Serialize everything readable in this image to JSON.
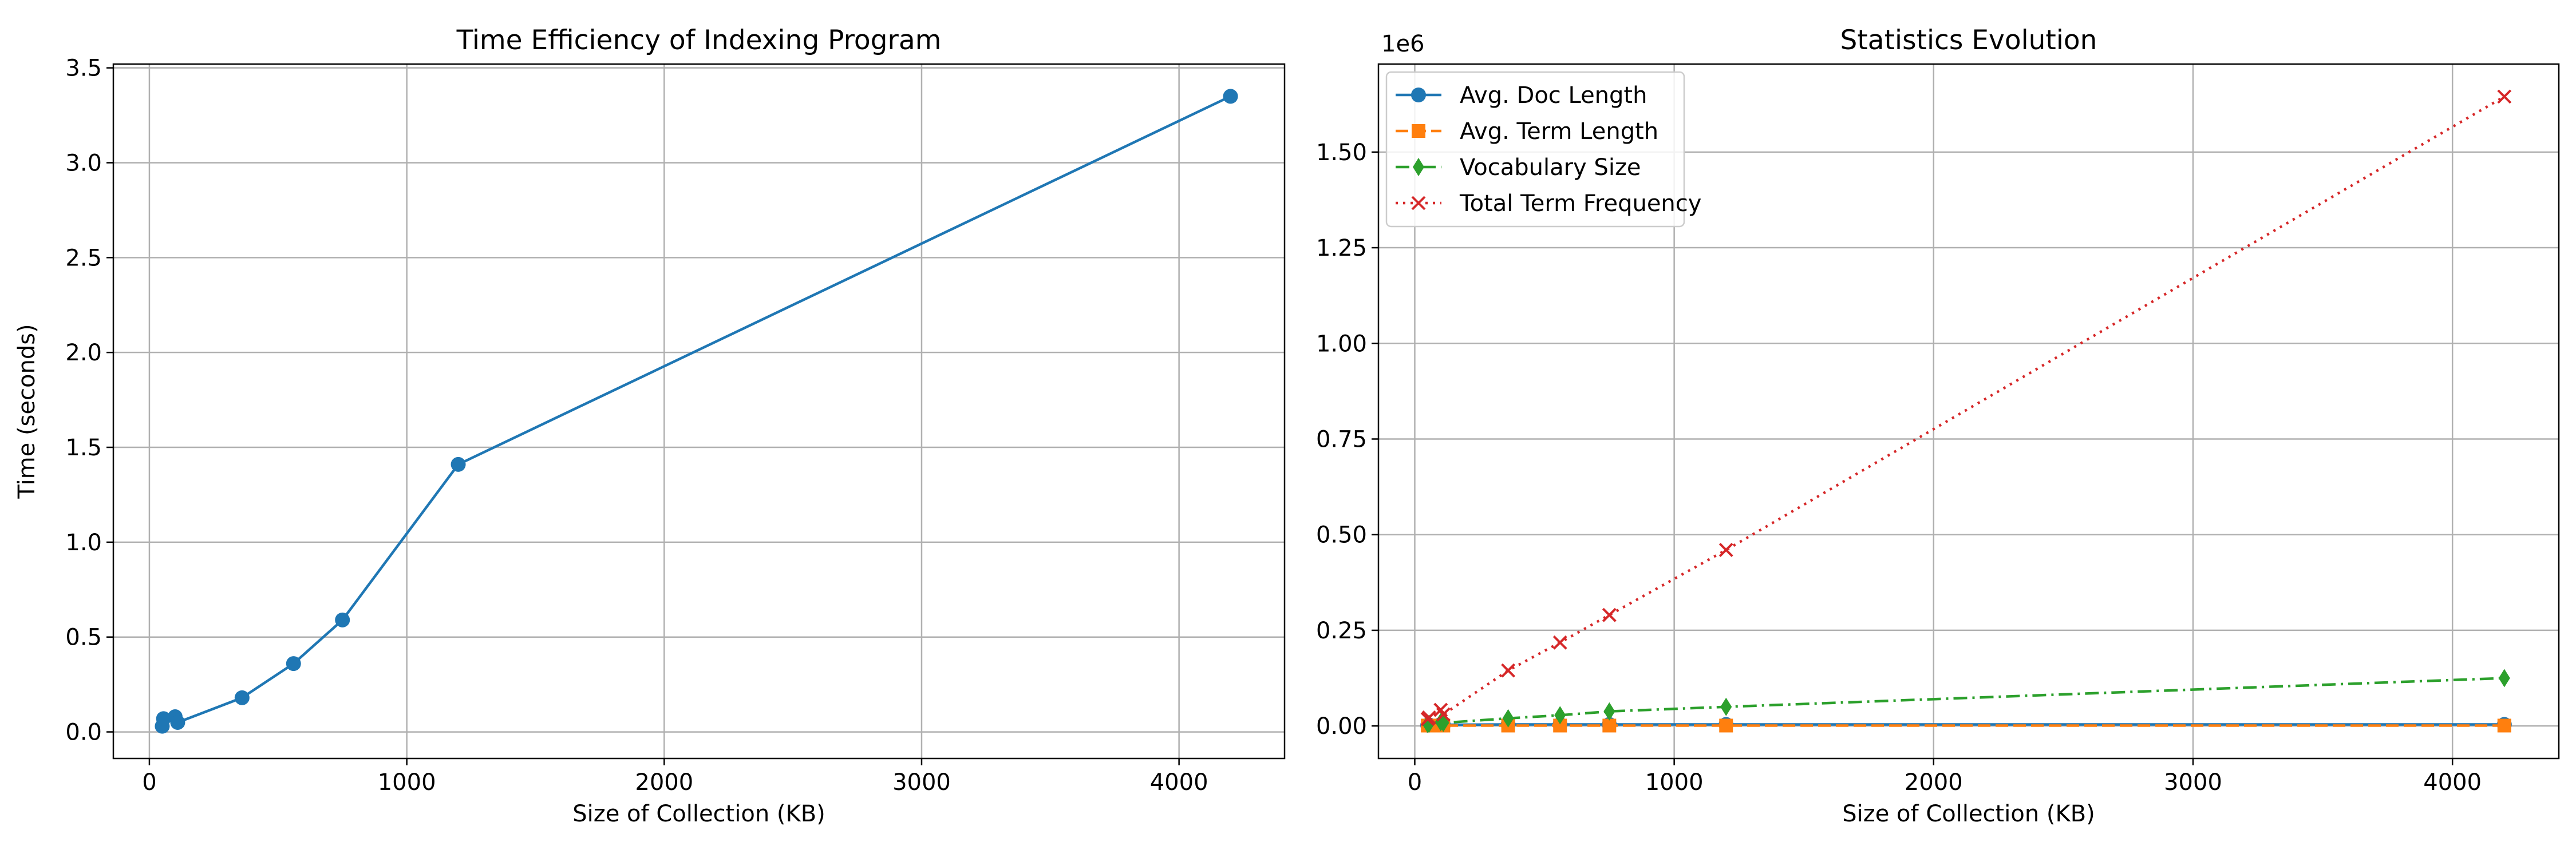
{
  "chart_data": [
    {
      "type": "line",
      "title": "Time Efficiency of Indexing Program",
      "xlabel": "Size of Collection (KB)",
      "ylabel": "Time (seconds)",
      "xlim": [
        -140,
        4410
      ],
      "ylim": [
        -0.14,
        3.52
      ],
      "xticks": [
        0,
        1000,
        2000,
        3000,
        4000
      ],
      "yticks": [
        0.0,
        0.5,
        1.0,
        1.5,
        2.0,
        2.5,
        3.0,
        3.5
      ],
      "grid": true,
      "series": [
        {
          "color": "#1f77b4",
          "marker": "circle",
          "linestyle": "solid",
          "x": [
            50,
            55,
            100,
            110,
            360,
            560,
            750,
            1200,
            4200
          ],
          "y": [
            0.03,
            0.07,
            0.08,
            0.05,
            0.18,
            0.36,
            0.59,
            1.41,
            3.35
          ]
        }
      ]
    },
    {
      "type": "line",
      "title": "Statistics Evolution",
      "xlabel": "Size of Collection (KB)",
      "ylabel": "",
      "offset_label": "1e6",
      "xlim": [
        -140,
        4410
      ],
      "ylim": [
        -85000,
        1730000
      ],
      "xticks": [
        0,
        1000,
        2000,
        3000,
        4000
      ],
      "yticks": [
        0,
        250000,
        500000,
        750000,
        1000000,
        1250000,
        1500000
      ],
      "ytick_labels": [
        "0.00",
        "0.25",
        "0.50",
        "0.75",
        "1.00",
        "1.25",
        "1.50"
      ],
      "grid": true,
      "legend": "top-left",
      "x": [
        50,
        55,
        100,
        110,
        360,
        560,
        750,
        1200,
        4200
      ],
      "series": [
        {
          "name": "Avg. Doc Length",
          "color": "#1f77b4",
          "marker": "circle",
          "linestyle": "solid",
          "y": [
            2000,
            3000,
            4000,
            3000,
            4000,
            4000,
            4000,
            4000,
            4000
          ]
        },
        {
          "name": "Avg. Term Length",
          "color": "#ff7f0e",
          "marker": "square",
          "linestyle": "dashed",
          "y": [
            1000,
            1000,
            1000,
            1000,
            1000,
            1000,
            1000,
            1000,
            1000
          ]
        },
        {
          "name": "Vocabulary Size",
          "color": "#2ca02c",
          "marker": "diamond",
          "linestyle": "dashdot",
          "y": [
            5000,
            6000,
            10000,
            8000,
            20000,
            28000,
            38000,
            50000,
            125000
          ]
        },
        {
          "name": "Total Term Frequency",
          "color": "#d62728",
          "marker": "x",
          "linestyle": "dotted",
          "y": [
            18000,
            22000,
            42000,
            30000,
            145000,
            218000,
            290000,
            460000,
            1645000
          ]
        }
      ]
    }
  ]
}
